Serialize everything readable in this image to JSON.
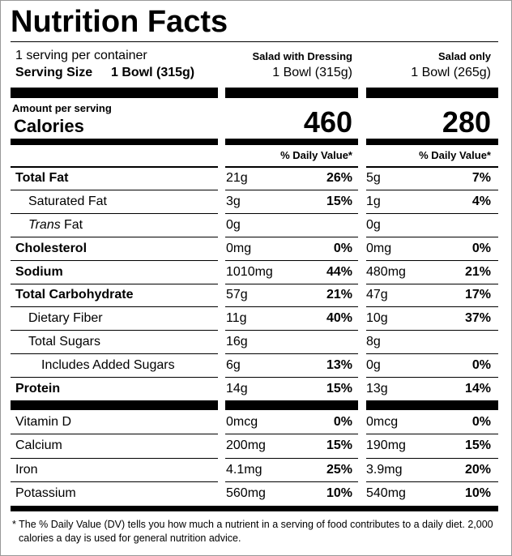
{
  "title": "Nutrition Facts",
  "servings": "1 serving per container",
  "serving_size_label": "Serving Size",
  "serving_size": "1 Bowl (315g)",
  "columns": [
    {
      "name": "Salad with Dressing",
      "size": "1 Bowl (315g)",
      "calories": 460
    },
    {
      "name": "Salad only",
      "size": "1 Bowl (265g)",
      "calories": 280
    }
  ],
  "amount_per_serving": "Amount per serving",
  "calories_label": "Calories",
  "dv_header": "% Daily Value*",
  "nutrients": [
    {
      "name": "Total Fat",
      "bold": true,
      "indent": 0,
      "amounts": [
        "21g",
        "5g"
      ],
      "dv": [
        "26%",
        "7%"
      ]
    },
    {
      "name": "Saturated Fat",
      "bold": false,
      "indent": 1,
      "amounts": [
        "3g",
        "1g"
      ],
      "dv": [
        "15%",
        "4%"
      ]
    },
    {
      "italic_prefix": "Trans",
      "name": "Fat",
      "bold": false,
      "indent": 1,
      "amounts": [
        "0g",
        "0g"
      ]
    },
    {
      "name": "Cholesterol",
      "bold": true,
      "indent": 0,
      "amounts": [
        "0mg",
        "0mg"
      ],
      "dv": [
        "0%",
        "0%"
      ]
    },
    {
      "name": "Sodium",
      "bold": true,
      "indent": 0,
      "amounts": [
        "1010mg",
        "480mg"
      ],
      "dv": [
        "44%",
        "21%"
      ]
    },
    {
      "name": "Total Carbohydrate",
      "bold": true,
      "indent": 0,
      "amounts": [
        "57g",
        "47g"
      ],
      "dv": [
        "21%",
        "17%"
      ]
    },
    {
      "name": "Dietary Fiber",
      "bold": false,
      "indent": 1,
      "amounts": [
        "11g",
        "10g"
      ],
      "dv": [
        "40%",
        "37%"
      ]
    },
    {
      "name": "Total Sugars",
      "bold": false,
      "indent": 1,
      "amounts": [
        "16g",
        "8g"
      ]
    },
    {
      "name": "Includes Added Sugars",
      "bold": false,
      "indent": 2,
      "amounts": [
        "6g",
        "0g"
      ],
      "dv": [
        "13%",
        "0%"
      ]
    },
    {
      "name": "Protein",
      "bold": true,
      "indent": 0,
      "amounts": [
        "14g",
        "13g"
      ],
      "dv": [
        "15%",
        "14%"
      ]
    }
  ],
  "vitamins": [
    {
      "name": "Vitamin D",
      "amounts": [
        "0mcg",
        "0mcg"
      ],
      "dv": [
        "0%",
        "0%"
      ]
    },
    {
      "name": "Calcium",
      "amounts": [
        "200mg",
        "190mg"
      ],
      "dv": [
        "15%",
        "15%"
      ]
    },
    {
      "name": "Iron",
      "amounts": [
        "4.1mg",
        "3.9mg"
      ],
      "dv": [
        "25%",
        "20%"
      ]
    },
    {
      "name": "Potassium",
      "amounts": [
        "560mg",
        "540mg"
      ],
      "dv": [
        "10%",
        "10%"
      ]
    }
  ],
  "footnote": "* The % Daily Value (DV) tells you how much a nutrient in a serving of food contributes to a daily diet. 2,000 calories a day is used for general nutrition advice."
}
